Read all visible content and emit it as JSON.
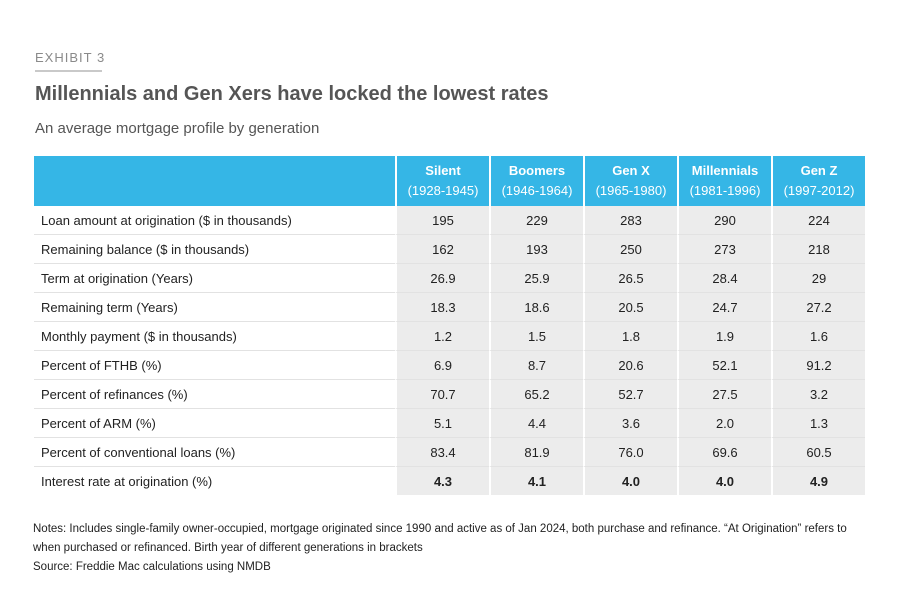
{
  "exhibit": "EXHIBIT 3",
  "title": "Millennials and Gen Xers have locked the lowest rates",
  "subtitle": "An average mortgage profile by generation",
  "colors": {
    "header_bg": "#35b6e6",
    "cell_bg": "#ececec",
    "text": "#222222",
    "muted": "#555555"
  },
  "table": {
    "columns": [
      {
        "name": "Silent",
        "years": "(1928-1945)"
      },
      {
        "name": "Boomers",
        "years": "(1946-1964)"
      },
      {
        "name": "Gen X",
        "years": "(1965-1980)"
      },
      {
        "name": "Millennials",
        "years": "(1981-1996)"
      },
      {
        "name": "Gen Z",
        "years": "(1997-2012)"
      }
    ],
    "rows": [
      {
        "label": "Loan amount at origination ($ in thousands)",
        "values": [
          "195",
          "229",
          "283",
          "290",
          "224"
        ]
      },
      {
        "label": "Remaining balance ($ in thousands)",
        "values": [
          "162",
          "193",
          "250",
          "273",
          "218"
        ]
      },
      {
        "label": "Term at origination (Years)",
        "values": [
          "26.9",
          "25.9",
          "26.5",
          "28.4",
          "29"
        ]
      },
      {
        "label": "Remaining term (Years)",
        "values": [
          "18.3",
          "18.6",
          "20.5",
          "24.7",
          "27.2"
        ]
      },
      {
        "label": "Monthly payment ($ in thousands)",
        "values": [
          "1.2",
          "1.5",
          "1.8",
          "1.9",
          "1.6"
        ]
      },
      {
        "label": "Percent of FTHB (%)",
        "values": [
          "6.9",
          "8.7",
          "20.6",
          "52.1",
          "91.2"
        ]
      },
      {
        "label": "Percent of refinances (%)",
        "values": [
          "70.7",
          "65.2",
          "52.7",
          "27.5",
          "3.2"
        ]
      },
      {
        "label": "Percent of ARM (%)",
        "values": [
          "5.1",
          "4.4",
          "3.6",
          "2.0",
          "1.3"
        ]
      },
      {
        "label": "Percent of conventional loans (%)",
        "values": [
          "83.4",
          "81.9",
          "76.0",
          "69.6",
          "60.5"
        ]
      },
      {
        "label": "Interest rate at origination (%)",
        "values": [
          "4.3",
          "4.1",
          "4.0",
          "4.0",
          "4.9"
        ]
      }
    ]
  },
  "notes": "Notes: Includes single-family owner-occupied, mortgage originated since 1990 and active as of Jan 2024, both purchase and refinance. “At Origination” refers to when purchased or refinanced. Birth year of different generations in brackets",
  "source": "Source: Freddie Mac calculations using NMDB"
}
